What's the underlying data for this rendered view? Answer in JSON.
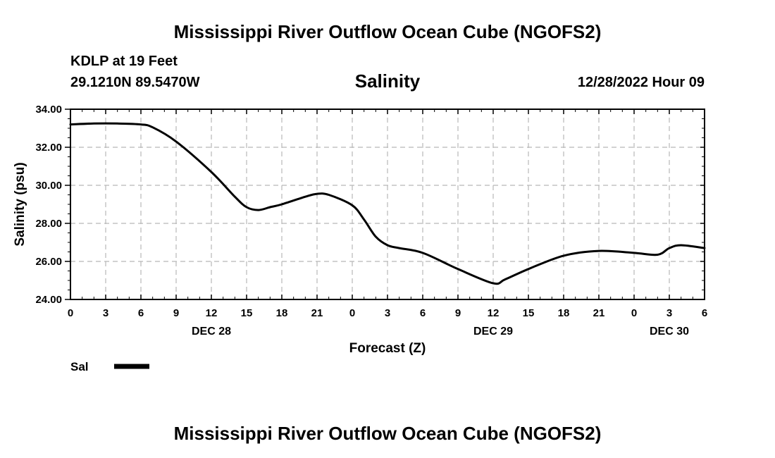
{
  "header": {
    "title": "Mississippi River Outflow Ocean Cube (NGOFS2)",
    "station": "KDLP at 19 Feet",
    "coords": "29.1210N  89.5470W",
    "subtitle": "Salinity",
    "datetime": "12/28/2022 Hour 09"
  },
  "footer": {
    "title": "Mississippi River Outflow Ocean Cube (NGOFS2)"
  },
  "chart_data": {
    "type": "line",
    "title": "Salinity",
    "xlabel": "Forecast (Z)",
    "ylabel": "Salinity (psu)",
    "ylim": [
      24,
      34
    ],
    "xlim": [
      0,
      54
    ],
    "grid": true,
    "y_ticks": [
      "24.00",
      "26.00",
      "28.00",
      "30.00",
      "32.00",
      "34.00"
    ],
    "x_ticks": [
      "0",
      "3",
      "6",
      "9",
      "12",
      "15",
      "18",
      "21",
      "0",
      "3",
      "6",
      "9",
      "12",
      "15",
      "18",
      "21",
      "0",
      "3",
      "6"
    ],
    "date_labels": [
      {
        "label": "DEC 28",
        "hour": 12
      },
      {
        "label": "DEC 29",
        "hour": 36
      },
      {
        "label": "DEC 30",
        "hour": 51
      }
    ],
    "legend": [
      {
        "name": "Sal",
        "position": "bottom-left"
      }
    ],
    "series": [
      {
        "name": "Sal",
        "x": [
          0,
          2,
          4,
          6,
          7,
          9,
          12,
          14,
          15,
          16,
          17,
          18,
          20,
          21,
          22,
          24,
          25,
          26,
          27,
          28,
          30,
          33,
          36,
          37,
          39,
          42,
          45,
          48,
          50,
          51,
          52,
          54
        ],
        "y": [
          33.2,
          33.25,
          33.25,
          33.2,
          33.05,
          32.3,
          30.7,
          29.4,
          28.85,
          28.7,
          28.85,
          29.0,
          29.4,
          29.55,
          29.5,
          28.95,
          28.2,
          27.3,
          26.85,
          26.7,
          26.45,
          25.6,
          24.85,
          25.05,
          25.6,
          26.3,
          26.55,
          26.45,
          26.35,
          26.7,
          26.85,
          26.7
        ]
      }
    ]
  }
}
